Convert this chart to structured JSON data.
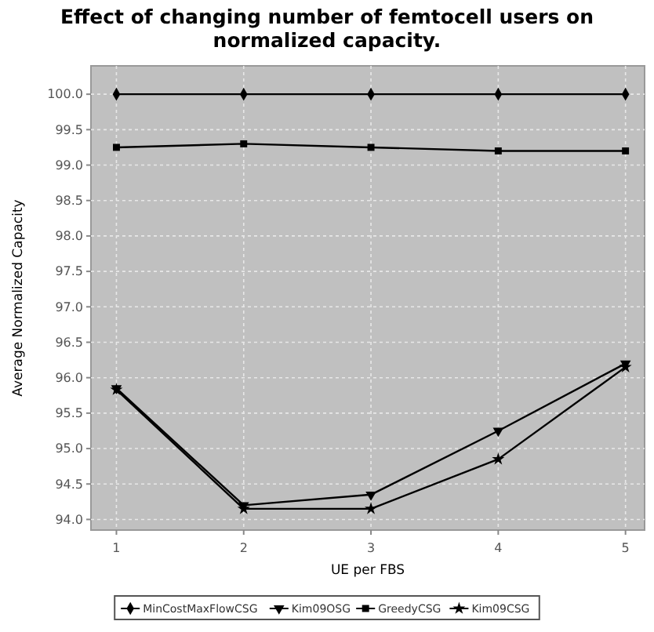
{
  "chart_data": {
    "type": "line",
    "title": "Effect of changing number of femtocell users on normalized capacity.",
    "xlabel": "UE per FBS",
    "ylabel": "Average Normalized Capacity",
    "x": [
      1,
      2,
      3,
      4,
      5
    ],
    "xlim": [
      0.8,
      5.15
    ],
    "xticks": [
      1,
      2,
      3,
      4,
      5
    ],
    "ylim": [
      93.85,
      100.4
    ],
    "yticks": [
      {
        "value": 94,
        "label": "94.0"
      },
      {
        "value": 94.5,
        "label": "94.5"
      },
      {
        "value": 95,
        "label": "95.0"
      },
      {
        "value": 95.5,
        "label": "95.5"
      },
      {
        "value": 96,
        "label": "96.0"
      },
      {
        "value": 96.5,
        "label": "96.5"
      },
      {
        "value": 97,
        "label": "97.0"
      },
      {
        "value": 97.5,
        "label": "97.5"
      },
      {
        "value": 98,
        "label": "98.0"
      },
      {
        "value": 98.5,
        "label": "98.5"
      },
      {
        "value": 99,
        "label": "99.0"
      },
      {
        "value": 99.5,
        "label": "99.5"
      },
      {
        "value": 100,
        "label": "100.0"
      }
    ],
    "grid": true,
    "legend": "bottom",
    "series": [
      {
        "name": "MinCostMaxFlowCSG",
        "color": "#000000",
        "marker": "diamond",
        "values": [
          100,
          100,
          100,
          100,
          100
        ]
      },
      {
        "name": "Kim09OSG",
        "color": "#000000",
        "marker": "triangle",
        "values": [
          95.85,
          94.2,
          94.35,
          95.25,
          96.2
        ]
      },
      {
        "name": "GreedyCSG",
        "color": "#000000",
        "marker": "square",
        "values": [
          99.25,
          99.3,
          99.25,
          99.2,
          99.2
        ]
      },
      {
        "name": "Kim09CSG",
        "color": "#000000",
        "marker": "star",
        "values": [
          95.83,
          94.15,
          94.15,
          94.85,
          96.15
        ]
      }
    ]
  }
}
